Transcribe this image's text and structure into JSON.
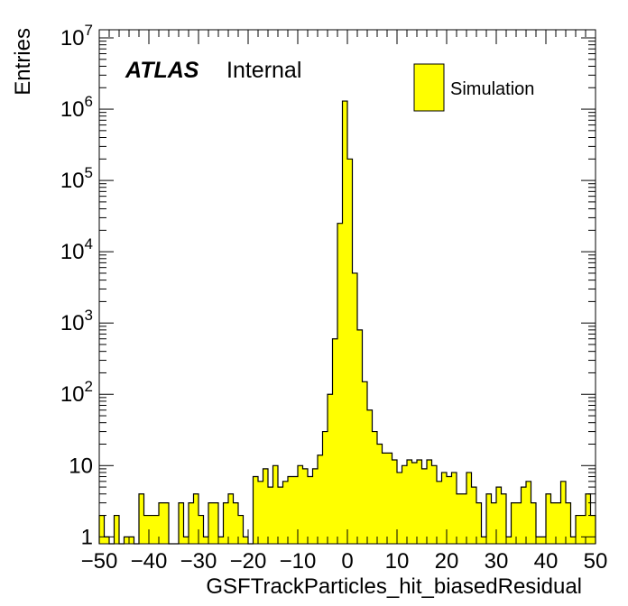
{
  "chart_data": {
    "type": "bar",
    "histogram": true,
    "title": "",
    "xlabel": "GSFTrackParticles_hit_biasedResidual",
    "ylabel": "Entries",
    "xlim": [
      -50,
      50
    ],
    "ylim": [
      0.8,
      13000000
    ],
    "yscale": "log",
    "bin_width": 1,
    "grid": false,
    "legend": {
      "placement": "top-right",
      "entries": [
        "Simulation"
      ]
    },
    "label_atlas": "ATLAS",
    "label_internal": "Internal",
    "bar_color": "#ffff00",
    "x_ticks": [
      "−50",
      "−40",
      "−30",
      "−20",
      "−10",
      "0",
      "10",
      "20",
      "30",
      "40",
      "50"
    ],
    "y_ticks": [
      {
        "value": 1,
        "base": "1",
        "exp": ""
      },
      {
        "value": 10,
        "base": "10",
        "exp": ""
      },
      {
        "value": 100,
        "base": "10",
        "exp": "2"
      },
      {
        "value": 1000,
        "base": "10",
        "exp": "3"
      },
      {
        "value": 10000,
        "base": "10",
        "exp": "4"
      },
      {
        "value": 100000,
        "base": "10",
        "exp": "5"
      },
      {
        "value": 1000000,
        "base": "10",
        "exp": "6"
      },
      {
        "value": 10000000,
        "base": "10",
        "exp": "7"
      }
    ],
    "series": [
      {
        "name": "Simulation",
        "x": [
          -50,
          -49,
          -48,
          -47,
          -46,
          -45,
          -44,
          -43,
          -42,
          -41,
          -40,
          -39,
          -38,
          -37,
          -36,
          -35,
          -34,
          -33,
          -32,
          -31,
          -30,
          -29,
          -28,
          -27,
          -26,
          -25,
          -24,
          -23,
          -22,
          -21,
          -20,
          -19,
          -18,
          -17,
          -16,
          -15,
          -14,
          -13,
          -12,
          -11,
          -10,
          -9,
          -8,
          -7,
          -6,
          -5,
          -4,
          -3,
          -2,
          -1,
          0,
          1,
          2,
          3,
          4,
          5,
          6,
          7,
          8,
          9,
          10,
          11,
          12,
          13,
          14,
          15,
          16,
          17,
          18,
          19,
          20,
          21,
          22,
          23,
          24,
          25,
          26,
          27,
          28,
          29,
          30,
          31,
          32,
          33,
          34,
          35,
          36,
          37,
          38,
          39,
          40,
          41,
          42,
          43,
          44,
          45,
          46,
          47,
          48,
          49
        ],
        "values": [
          2,
          1,
          0,
          2,
          0,
          1,
          1,
          0,
          4,
          2,
          2,
          2,
          3,
          3,
          0,
          0,
          3,
          1,
          3,
          4,
          2,
          1,
          3,
          3,
          1,
          3,
          4,
          3,
          2,
          1,
          0,
          7,
          6,
          9,
          5,
          10,
          5,
          6,
          7,
          7,
          10,
          9,
          7,
          9,
          14,
          30,
          100,
          600,
          25000,
          1300000,
          200000,
          5000,
          800,
          150,
          60,
          30,
          20,
          15,
          15,
          12,
          8,
          10,
          12,
          11,
          12,
          9,
          12,
          10,
          6,
          8,
          7,
          8,
          4,
          4,
          8,
          5,
          3,
          1,
          4,
          3,
          5,
          4,
          1,
          3,
          3,
          5,
          6,
          3,
          1,
          1,
          4,
          3,
          3,
          6,
          3,
          1,
          2,
          2,
          4,
          2
        ]
      }
    ]
  }
}
